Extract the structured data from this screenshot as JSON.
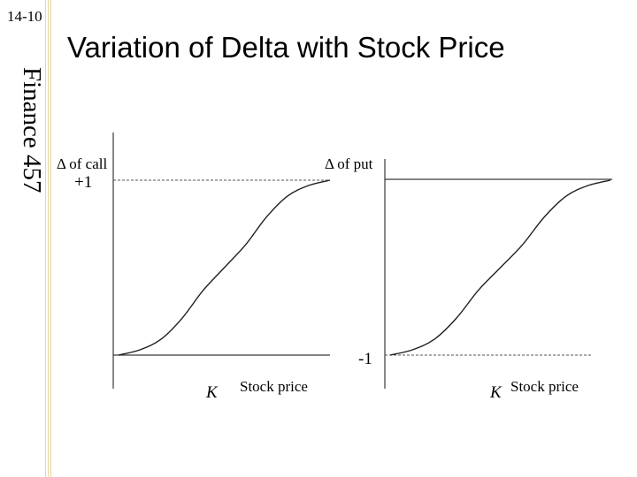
{
  "slide": {
    "number": "14-10",
    "course": "Finance 457",
    "title": "Variation of Delta with Stock Price"
  },
  "colors": {
    "curve": "#1f1f1f",
    "axis": "#3a3a3a",
    "guide": "#555555",
    "side_rules": "#e6d59a"
  },
  "chart_data": [
    {
      "type": "line",
      "title": "",
      "ylabel": "Δ of call",
      "xlabel": "Stock price",
      "x_tick_labels": [
        "K"
      ],
      "y_tick_labels": [
        "+1"
      ],
      "ylim": [
        0,
        1
      ],
      "reference_lines": [
        {
          "y": 1,
          "label": "+1",
          "style": "dashed"
        }
      ],
      "series": [
        {
          "x": [
            -1.0,
            -0.8,
            -0.6,
            -0.4,
            -0.2,
            0.0,
            0.2,
            0.4,
            0.6,
            0.8,
            1.0
          ],
          "y": [
            0.0,
            0.03,
            0.09,
            0.21,
            0.37,
            0.5,
            0.63,
            0.79,
            0.91,
            0.97,
            1.0
          ]
        }
      ]
    },
    {
      "type": "line",
      "title": "",
      "ylabel": "Δ of put",
      "xlabel": "Stock price",
      "x_tick_labels": [
        "K"
      ],
      "y_tick_labels": [
        "-1"
      ],
      "ylim": [
        -1,
        0
      ],
      "reference_lines": [
        {
          "y": -1,
          "label": "-1",
          "style": "dashed"
        }
      ],
      "series": [
        {
          "x": [
            -1.0,
            -0.8,
            -0.6,
            -0.4,
            -0.2,
            0.0,
            0.2,
            0.4,
            0.6,
            0.8,
            1.0
          ],
          "y": [
            -1.0,
            -0.97,
            -0.91,
            -0.79,
            -0.63,
            -0.5,
            -0.37,
            -0.21,
            -0.09,
            -0.03,
            0.0
          ]
        }
      ]
    }
  ]
}
